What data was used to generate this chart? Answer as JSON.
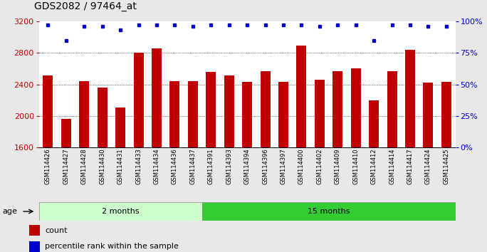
{
  "title": "GDS2082 / 97464_at",
  "samples": [
    "GSM114426",
    "GSM114427",
    "GSM114428",
    "GSM114430",
    "GSM114431",
    "GSM114433",
    "GSM114434",
    "GSM114436",
    "GSM114437",
    "GSM114391",
    "GSM114393",
    "GSM114394",
    "GSM114396",
    "GSM114397",
    "GSM114400",
    "GSM114402",
    "GSM114409",
    "GSM114410",
    "GSM114412",
    "GSM114414",
    "GSM114417",
    "GSM114424",
    "GSM114425"
  ],
  "counts": [
    2510,
    1960,
    2440,
    2360,
    2110,
    2800,
    2860,
    2440,
    2440,
    2560,
    2510,
    2430,
    2570,
    2430,
    2890,
    2460,
    2570,
    2600,
    2200,
    2570,
    2840,
    2420,
    2430
  ],
  "percentile_ranks": [
    97,
    85,
    96,
    96,
    93,
    97,
    97,
    97,
    96,
    97,
    97,
    97,
    97,
    97,
    97,
    96,
    97,
    97,
    85,
    97,
    97,
    96,
    96
  ],
  "group1_count": 9,
  "group1_label": "2 months",
  "group2_label": "15 months",
  "bar_color": "#c00000",
  "dot_color": "#0000cc",
  "ylim_left": [
    1600,
    3200
  ],
  "ylim_right": [
    0,
    100
  ],
  "yticks_left": [
    1600,
    2000,
    2400,
    2800,
    3200
  ],
  "yticks_right": [
    0,
    25,
    50,
    75,
    100
  ],
  "grid_values": [
    2000,
    2400,
    2800
  ],
  "background_color": "#e8e8e8",
  "plot_bg": "#ffffff",
  "group1_bg": "#ccffcc",
  "group2_bg": "#33cc33",
  "age_label": "age",
  "legend_count_label": "count",
  "legend_percentile_label": "percentile rank within the sample",
  "title_fontsize": 10,
  "tick_fontsize": 8,
  "xtick_fontsize": 6
}
